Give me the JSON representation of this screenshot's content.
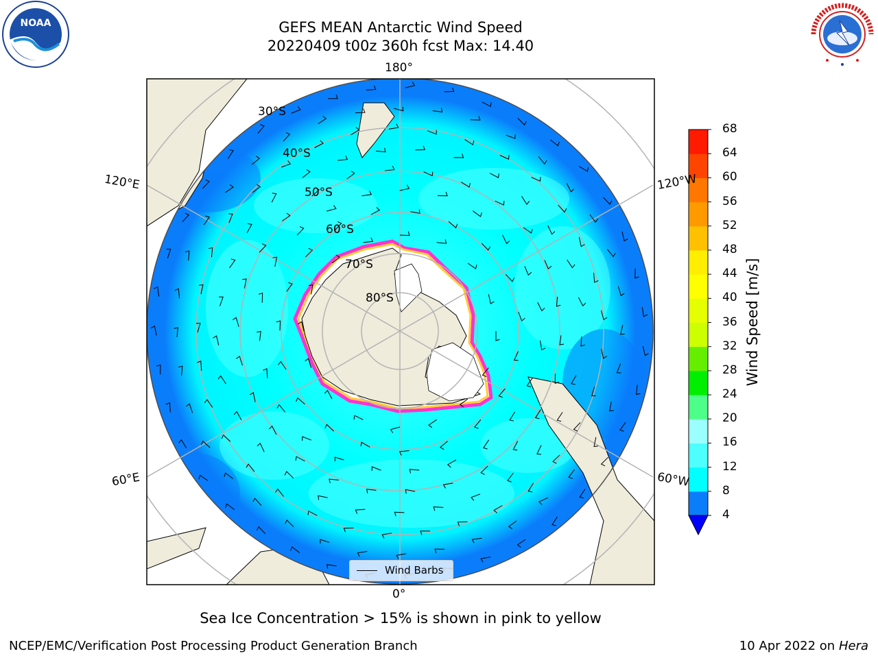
{
  "header": {
    "title_line1": "GEFS MEAN Antarctic Wind Speed",
    "title_line2": "20220409 t00z 360h fcst   Max: 14.40"
  },
  "logos": {
    "noaa_text": "NOAA",
    "nws_text": "NATIONAL WEATHER SERVICE"
  },
  "map": {
    "projection": "south-polar-stereographic",
    "lon_labels": {
      "top": "180°",
      "bottom": "0°",
      "upper_left": "120°E",
      "upper_right": "120°W",
      "lower_left": "60°E",
      "lower_right": "60°W"
    },
    "lat_labels": [
      "30°S",
      "40°S",
      "50°S",
      "60°S",
      "70°S",
      "80°S"
    ],
    "legend_label": "Wind Barbs",
    "colors": {
      "ocean_low": "#0a7dfb",
      "ocean_mid": "#00ffff",
      "ocean_high": "#4dffff",
      "land": "#efecdc",
      "ice": "#ffffff",
      "ice_edge": [
        "#ff33cc",
        "#ffcc33",
        "#ffee33"
      ]
    }
  },
  "colorbar": {
    "label": "Wind Speed [m/s]",
    "ticks": [
      "4",
      "8",
      "12",
      "16",
      "20",
      "24",
      "28",
      "32",
      "36",
      "40",
      "44",
      "48",
      "52",
      "56",
      "60",
      "64",
      "68"
    ],
    "colors": [
      "#0a7dfb",
      "#00ffff",
      "#4dffff",
      "#9cffff",
      "#4dff88",
      "#00ee00",
      "#66ee00",
      "#ccff00",
      "#e6ff00",
      "#ffff00",
      "#ffee00",
      "#ffc000",
      "#ff9900",
      "#ff7700",
      "#ff4400",
      "#ff1a00"
    ],
    "under_color": "#0000ff"
  },
  "caption": "Sea Ice Concentration > 15% is shown in pink to yellow",
  "footer": {
    "left": "NCEP/EMC/Verification Post Processing Product Generation Branch",
    "right_prefix": "10 Apr 2022 on ",
    "right_host": "Hera"
  }
}
